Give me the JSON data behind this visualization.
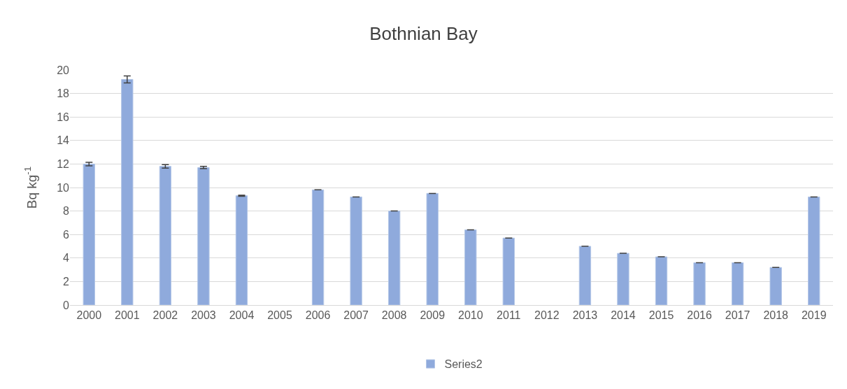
{
  "chart_data": {
    "type": "bar",
    "title": "Bothnian Bay",
    "ylabel": "Bq kg$^{-1}$",
    "categories": [
      "2000",
      "2001",
      "2002",
      "2003",
      "2004",
      "2005",
      "2006",
      "2007",
      "2008",
      "2009",
      "2010",
      "2011",
      "2012",
      "2013",
      "2014",
      "2015",
      "2016",
      "2017",
      "2018",
      "2019"
    ],
    "series": [
      {
        "name": "Series2",
        "color": "#8faadc",
        "values": [
          12.0,
          19.2,
          11.8,
          11.7,
          9.3,
          null,
          9.8,
          9.2,
          8.0,
          9.5,
          6.4,
          5.7,
          null,
          5.0,
          4.4,
          4.1,
          3.6,
          3.6,
          3.2,
          9.2
        ],
        "errors": [
          0.15,
          0.3,
          0.15,
          0.1,
          0.05,
          null,
          null,
          null,
          null,
          null,
          null,
          null,
          null,
          null,
          null,
          null,
          null,
          null,
          null,
          null
        ]
      }
    ],
    "ylim": [
      0,
      20
    ],
    "yticks": [
      0,
      2,
      4,
      6,
      8,
      10,
      12,
      14,
      16,
      18,
      20
    ],
    "grid": "y",
    "legend": "bottom"
  }
}
